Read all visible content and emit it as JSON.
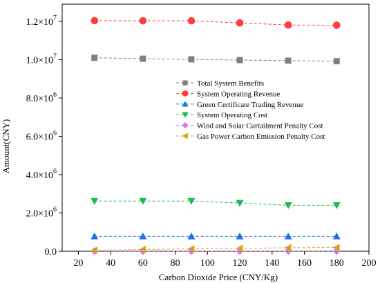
{
  "chart_data": {
    "type": "line",
    "title": "",
    "xlabel": "Carbon Dioxide Price (CNY/Kg)",
    "ylabel": "Amount(CNY)",
    "xlim": [
      10,
      200
    ],
    "ylim": [
      0,
      12900000
    ],
    "x_ticks": [
      20,
      40,
      60,
      80,
      100,
      120,
      140,
      160,
      180,
      200
    ],
    "y_ticks": [
      {
        "value": 0,
        "mantissa": "0.0",
        "exp": ""
      },
      {
        "value": 2000000,
        "mantissa": "2.0×10",
        "exp": "6"
      },
      {
        "value": 4000000,
        "mantissa": "4.0×10",
        "exp": "6"
      },
      {
        "value": 6000000,
        "mantissa": "6.0×10",
        "exp": "6"
      },
      {
        "value": 8000000,
        "mantissa": "8.0×10",
        "exp": "6"
      },
      {
        "value": 10000000,
        "mantissa": "1.0×10",
        "exp": "7"
      },
      {
        "value": 12000000,
        "mantissa": "1.2×10",
        "exp": "7"
      }
    ],
    "x": [
      30,
      60,
      90,
      120,
      150,
      180
    ],
    "legend_position": "center-right",
    "series": [
      {
        "name": "Total System Benefits",
        "color": "#808080",
        "marker": "square",
        "values": [
          10100000,
          10050000,
          10020000,
          9980000,
          9950000,
          9920000
        ]
      },
      {
        "name": "System Operating Revenue",
        "color": "#ff3b3b",
        "marker": "circle",
        "values": [
          12040000,
          12030000,
          12030000,
          11920000,
          11810000,
          11800000
        ]
      },
      {
        "name": "Green Certificate Trading Revenue",
        "color": "#1f6fe5",
        "marker": "triangle-up",
        "values": [
          780000,
          780000,
          780000,
          780000,
          780000,
          780000
        ]
      },
      {
        "name": "System Operating Cost",
        "color": "#1db954",
        "marker": "triangle-down",
        "values": [
          2620000,
          2620000,
          2620000,
          2520000,
          2400000,
          2400000
        ]
      },
      {
        "name": "Wind and Solar Curtailment Penalty Cost",
        "color": "#cc77ee",
        "marker": "diamond",
        "values": [
          10000,
          10000,
          10000,
          10000,
          10000,
          10000
        ]
      },
      {
        "name": "Gas Power Carbon Emission Penalty Cost",
        "color": "#d9a21b",
        "marker": "triangle-left",
        "values": [
          50000,
          90000,
          120000,
          150000,
          180000,
          200000
        ]
      }
    ]
  }
}
